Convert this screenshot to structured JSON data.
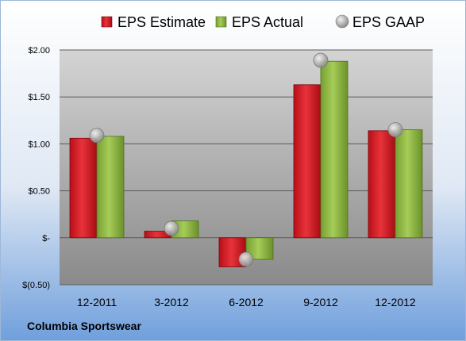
{
  "chart_data": {
    "type": "bar",
    "title": "",
    "xlabel": "",
    "ylabel": "",
    "categories": [
      "12-2011",
      "3-2012",
      "6-2012",
      "9-2012",
      "12-2012"
    ],
    "series": [
      {
        "name": "EPS Estimate",
        "kind": "bar",
        "color": "#c8141e",
        "values": [
          1.06,
          0.07,
          -0.31,
          1.63,
          1.14
        ]
      },
      {
        "name": "EPS Actual",
        "kind": "bar",
        "color": "#8cb43c",
        "values": [
          1.08,
          0.18,
          -0.23,
          1.88,
          1.15
        ]
      },
      {
        "name": "EPS GAAP",
        "kind": "marker",
        "color": "#b4b4b4",
        "values": [
          1.09,
          0.1,
          -0.23,
          1.89,
          1.15
        ]
      }
    ],
    "ylim": [
      -0.5,
      2.0
    ],
    "yticks": [
      -0.5,
      0,
      0.5,
      1.0,
      1.5,
      2.0
    ],
    "ytick_labels": [
      "$(0.50)",
      "$-",
      "$0.50",
      "$1.00",
      "$1.50",
      "$2.00"
    ],
    "grid": true,
    "legend_position": "top"
  },
  "footer": {
    "company": "Columbia Sportswear"
  }
}
